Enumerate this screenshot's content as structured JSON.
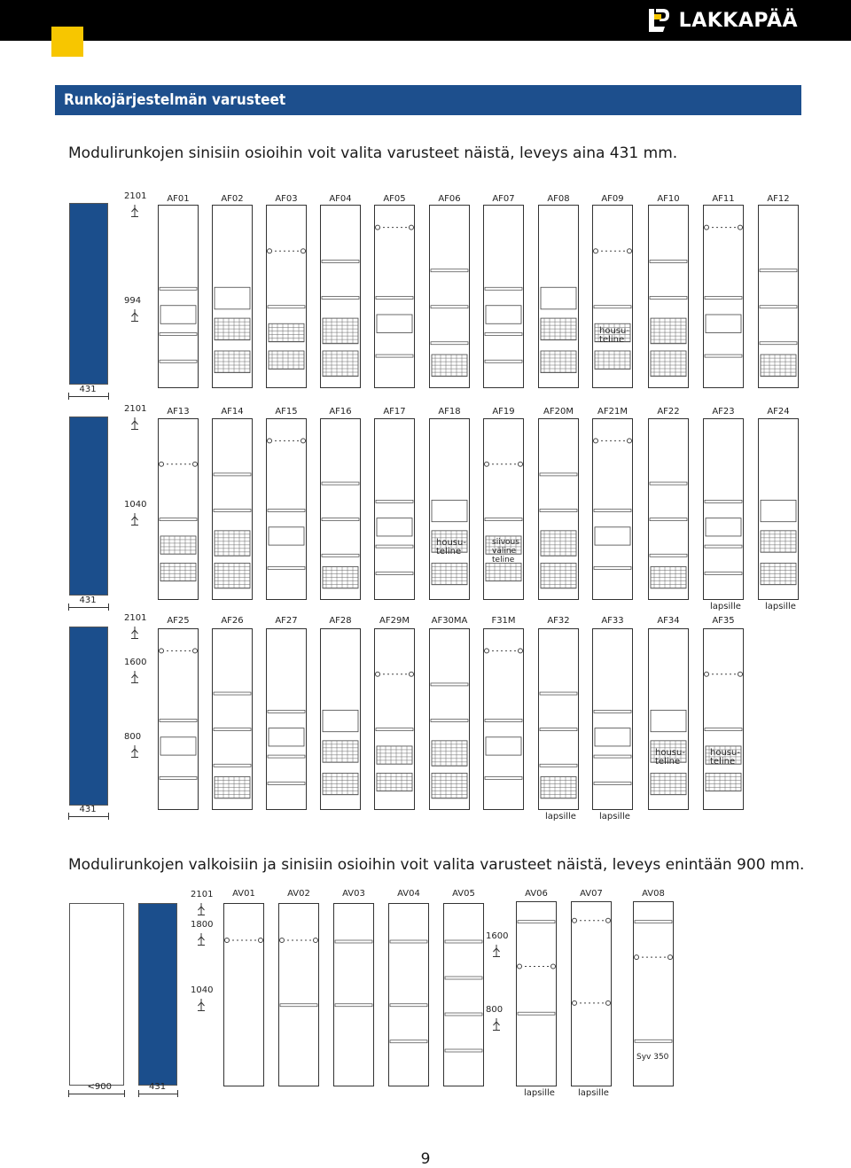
{
  "brand": {
    "name": "LAKKAPÄÄ"
  },
  "section": {
    "title": "Runkojärjestelmän varusteet"
  },
  "intro1": "Modulirunkojen sinisiin osioihin voit valita varusteet näistä, leveys aina 431 mm.",
  "intro2": "Modulirunkojen valkoisiin ja sinisiin osioihin voit valita varusteet näistä,  leveys enintään 900 mm.",
  "rows": [
    {
      "height_label": "2101",
      "mid_label": "994",
      "width_label": "431",
      "codes": [
        "AF01",
        "AF02",
        "AF03",
        "AF04",
        "AF05",
        "AF06",
        "AF07",
        "AF08",
        "AF09",
        "AF10",
        "AF11",
        "AF12"
      ],
      "notes": [
        {
          "text_a": "housu-",
          "text_b": "teline",
          "col": 8
        }
      ]
    },
    {
      "height_label": "2101",
      "mid_label": "1040",
      "width_label": "431",
      "codes": [
        "AF13",
        "AF14",
        "AF15",
        "AF16",
        "AF17",
        "AF18",
        "AF19",
        "AF20M",
        "AF21M",
        "AF22",
        "AF23",
        "AF24"
      ],
      "notes": [
        {
          "text_a": "housu-",
          "text_b": "teline",
          "col": 5
        },
        {
          "text_a": "siivous",
          "text_b": "väline",
          "text_c": "teline",
          "col": 6
        }
      ],
      "bottom_labels": [
        {
          "text": "lapsille",
          "col": 10
        },
        {
          "text": "lapsille",
          "col": 11
        }
      ]
    },
    {
      "height_label": "2101",
      "mid_label": "1600",
      "mid_label2": "800",
      "width_label": "431",
      "codes": [
        "AF25",
        "AF26",
        "AF27",
        "AF28",
        "AF29M",
        "AF30MA",
        "F31M",
        "AF32",
        "AF33",
        "AF34",
        "AF35"
      ],
      "notes": [
        {
          "text_a": "housu-",
          "text_b": "teline",
          "col": 9
        },
        {
          "text_a": "housu-",
          "text_b": "teline",
          "col": 10
        }
      ],
      "bottom_labels": [
        {
          "text": "lapsille",
          "col": 7
        },
        {
          "text": "lapsille",
          "col": 8
        }
      ]
    }
  ],
  "av_row": {
    "height_label": "2101",
    "labels": [
      "1800",
      "1040",
      "1600",
      "800"
    ],
    "codes": [
      "AV01",
      "AV02",
      "AV03",
      "AV04",
      "AV05",
      "AV06",
      "AV07",
      "AV08"
    ],
    "depth_note": "Syv 350",
    "width_labels": [
      "<900",
      "431"
    ],
    "bottom_labels": [
      "lapsille",
      "lapsille"
    ]
  },
  "page_number": "9",
  "colors": {
    "blue": "#1b4e8c",
    "yellow": "#f7c600",
    "black": "#000000"
  }
}
